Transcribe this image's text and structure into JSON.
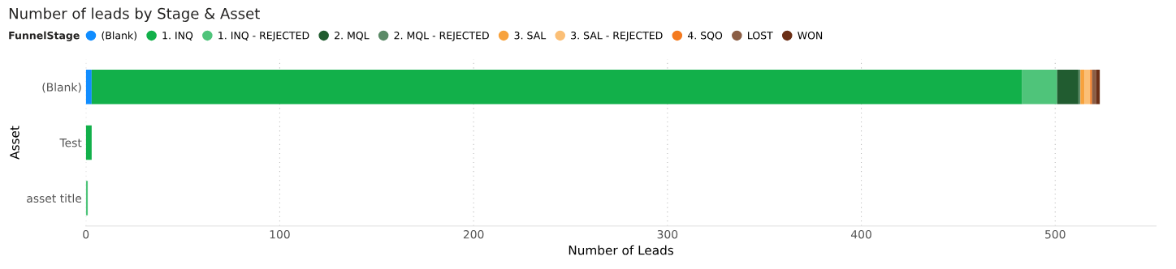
{
  "chart_data": {
    "type": "bar",
    "title": "Number of leads by Stage & Asset",
    "xlabel": "Number of Leads",
    "ylabel": "Asset",
    "legend_title": "FunnelStage",
    "orientation": "horizontal",
    "stacked": true,
    "categories": [
      "(Blank)",
      "Test",
      "asset title"
    ],
    "series": [
      {
        "name": "(Blank)",
        "color": "#118dff",
        "values": [
          3,
          0,
          0
        ]
      },
      {
        "name": "1. INQ",
        "color": "#12b04a",
        "values": [
          480,
          3,
          0
        ]
      },
      {
        "name": "1. INQ - REJECTED",
        "color": "#4fc47a",
        "values": [
          18,
          0,
          1
        ]
      },
      {
        "name": "2. MQL",
        "color": "#215c30",
        "values": [
          11,
          0,
          0
        ]
      },
      {
        "name": "2. MQL - REJECTED",
        "color": "#5b8a67",
        "values": [
          1,
          0,
          0
        ]
      },
      {
        "name": "3. SAL",
        "color": "#f7a23d",
        "values": [
          2,
          0,
          0
        ]
      },
      {
        "name": "3. SAL - REJECTED",
        "color": "#fbbf76",
        "values": [
          3,
          0,
          0
        ]
      },
      {
        "name": "4. SQO",
        "color": "#f47a1f",
        "values": [
          1,
          0,
          0
        ]
      },
      {
        "name": "LOST",
        "color": "#8b5e45",
        "values": [
          2,
          0,
          0
        ]
      },
      {
        "name": "WON",
        "color": "#6b2f16",
        "values": [
          2,
          0,
          0
        ]
      }
    ],
    "xlim": [
      0,
      552
    ],
    "xticks": [
      0,
      100,
      200,
      300,
      400,
      500
    ],
    "grid": "x",
    "legend": "top left"
  }
}
